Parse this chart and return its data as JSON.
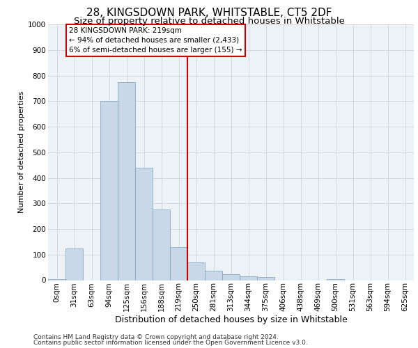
{
  "title": "28, KINGSDOWN PARK, WHITSTABLE, CT5 2DF",
  "subtitle": "Size of property relative to detached houses in Whitstable",
  "xlabel": "Distribution of detached houses by size in Whitstable",
  "ylabel": "Number of detached properties",
  "footer_line1": "Contains HM Land Registry data © Crown copyright and database right 2024.",
  "footer_line2": "Contains public sector information licensed under the Open Government Licence v3.0.",
  "bar_labels": [
    "0sqm",
    "31sqm",
    "63sqm",
    "94sqm",
    "125sqm",
    "156sqm",
    "188sqm",
    "219sqm",
    "250sqm",
    "281sqm",
    "313sqm",
    "344sqm",
    "375sqm",
    "406sqm",
    "438sqm",
    "469sqm",
    "500sqm",
    "531sqm",
    "563sqm",
    "594sqm",
    "625sqm"
  ],
  "bar_values": [
    5,
    125,
    0,
    700,
    775,
    440,
    275,
    130,
    70,
    37,
    22,
    15,
    13,
    0,
    0,
    0,
    5,
    0,
    0,
    0,
    0
  ],
  "bar_color": "#c8d8e8",
  "bar_edgecolor": "#7aa0bb",
  "marker_index": 7,
  "marker_line_color": "#cc0000",
  "annotation_text": "28 KINGSDOWN PARK: 219sqm\n← 94% of detached houses are smaller (2,433)\n6% of semi-detached houses are larger (155) →",
  "annotation_box_color": "#ffffff",
  "annotation_box_edgecolor": "#cc0000",
  "ylim": [
    0,
    1000
  ],
  "yticks": [
    0,
    100,
    200,
    300,
    400,
    500,
    600,
    700,
    800,
    900,
    1000
  ],
  "grid_color": "#d0d8e0",
  "bg_color": "#edf2f7",
  "title_fontsize": 11,
  "subtitle_fontsize": 9.5,
  "xlabel_fontsize": 9,
  "ylabel_fontsize": 8,
  "tick_fontsize": 7.5,
  "footer_fontsize": 6.5,
  "annot_fontsize": 7.5
}
